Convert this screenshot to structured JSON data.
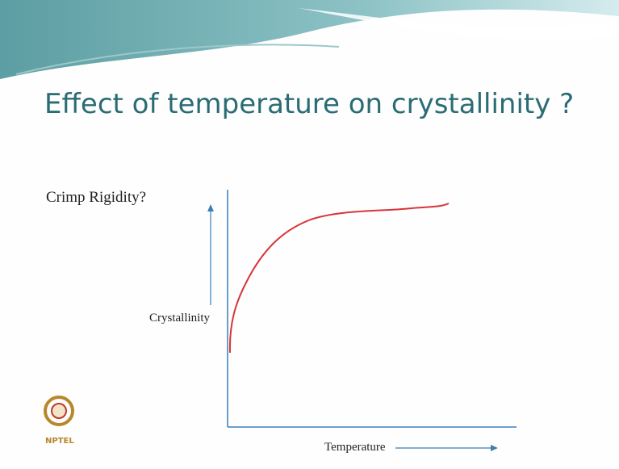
{
  "slide": {
    "title": "Effect of temperature on crystallinity ?",
    "subtitle": "Crimp Rigidity?",
    "y_axis_label": "Crystallinity",
    "x_axis_label": "Temperature",
    "logo_text": "NPTEL"
  }
}
